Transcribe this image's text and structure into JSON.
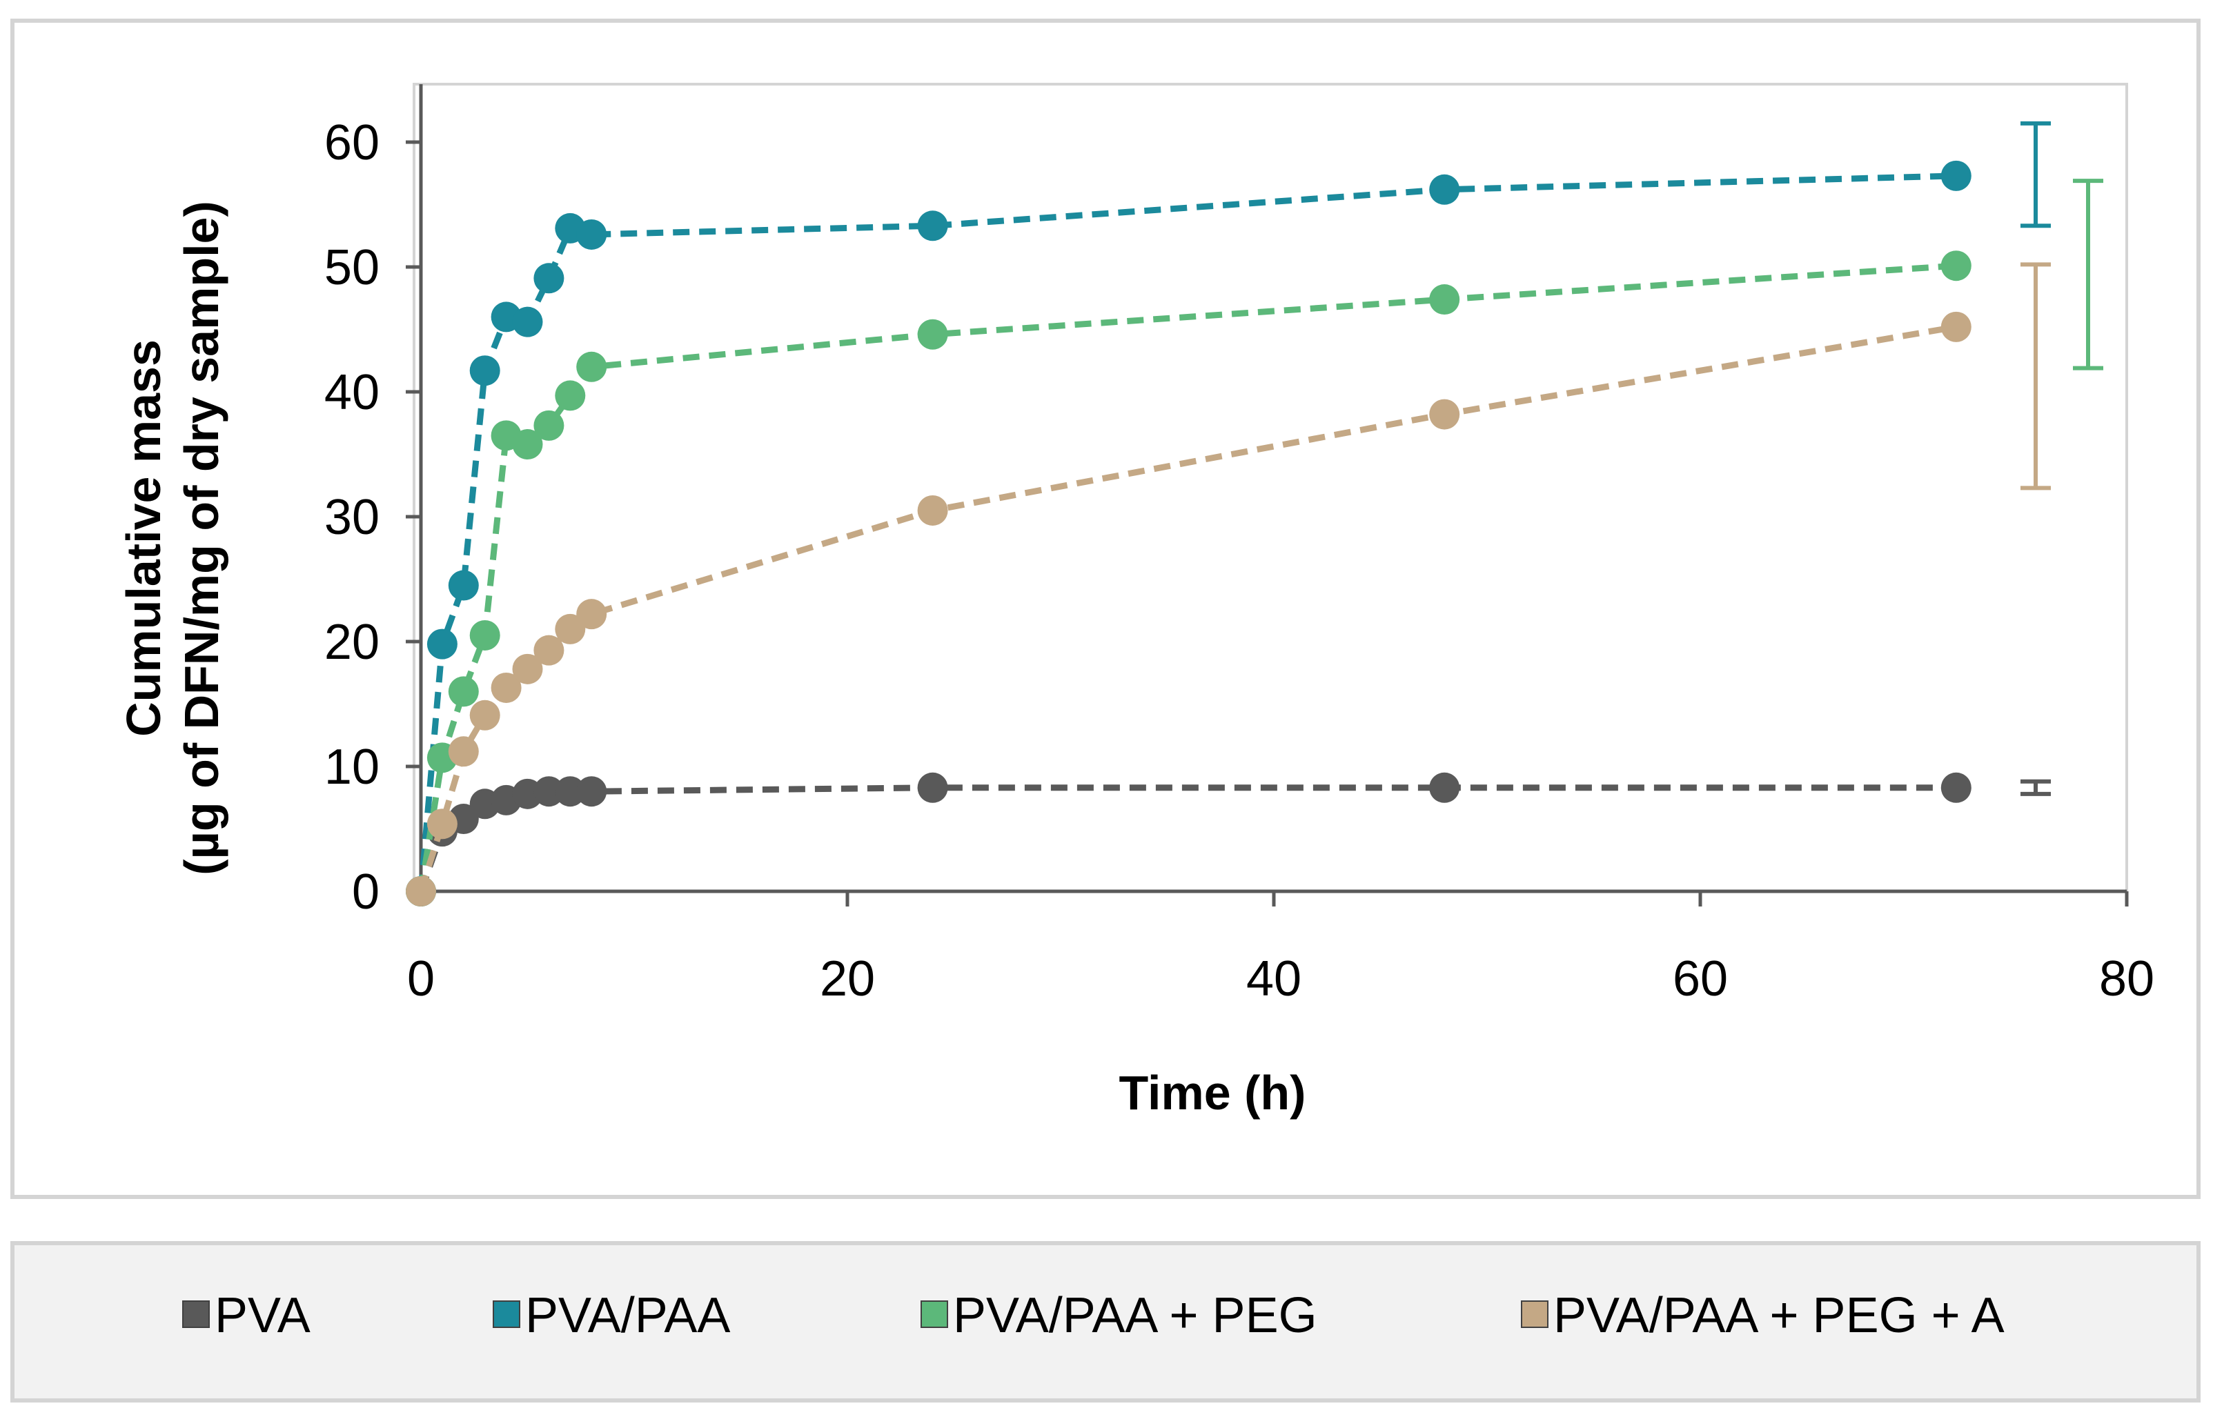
{
  "chart_data": {
    "type": "line",
    "title": "",
    "xlabel": "Time (h)",
    "ylabel_lines": [
      "Cumulative mass",
      "(µg of DFN/mg of dry sample)"
    ],
    "xlim": [
      0,
      80
    ],
    "ylim": [
      0,
      65
    ],
    "x_ticks": [
      "0",
      "20",
      "40",
      "60",
      "80"
    ],
    "y_ticks": [
      "0",
      "10",
      "20",
      "30",
      "40",
      "50",
      "60"
    ],
    "grid": false,
    "legend_position": "bottom",
    "series": [
      {
        "name": "PVA",
        "color": "#595959",
        "x": [
          0,
          1,
          2,
          3,
          4,
          5,
          6,
          7,
          8,
          24,
          48,
          72
        ],
        "y": [
          0,
          4.8,
          5.8,
          7.0,
          7.3,
          7.8,
          8.0,
          8.0,
          8.0,
          8.3,
          8.3,
          8.3
        ],
        "error_72h": [
          7.8,
          8.8
        ]
      },
      {
        "name": "PVA/PAA",
        "color": "#1B8A9C",
        "x": [
          0,
          1,
          2,
          3,
          4,
          5,
          6,
          7,
          8,
          24,
          48,
          72
        ],
        "y": [
          0,
          19.8,
          24.5,
          41.7,
          46.0,
          45.6,
          49.1,
          53.1,
          52.6,
          53.3,
          56.2,
          57.3
        ],
        "error_72h": [
          53.3,
          61.5
        ]
      },
      {
        "name": "PVA/PAA + PEG",
        "color": "#5CB87A",
        "x": [
          0,
          1,
          2,
          3,
          4,
          5,
          6,
          7,
          8,
          24,
          48,
          72
        ],
        "y": [
          0,
          10.7,
          16.0,
          20.5,
          36.5,
          35.8,
          37.3,
          39.7,
          42.0,
          44.6,
          47.4,
          50.1
        ],
        "error_72h": [
          41.9,
          56.9
        ]
      },
      {
        "name": "PVA/PAA + PEG + A",
        "color": "#C4A885",
        "x": [
          0,
          1,
          2,
          3,
          4,
          5,
          6,
          7,
          8,
          24,
          48,
          72
        ],
        "y": [
          0,
          5.4,
          11.2,
          14.1,
          16.3,
          17.8,
          19.3,
          21.0,
          22.2,
          30.5,
          38.2,
          45.2
        ],
        "error_72h": [
          32.3,
          50.2
        ]
      }
    ]
  }
}
